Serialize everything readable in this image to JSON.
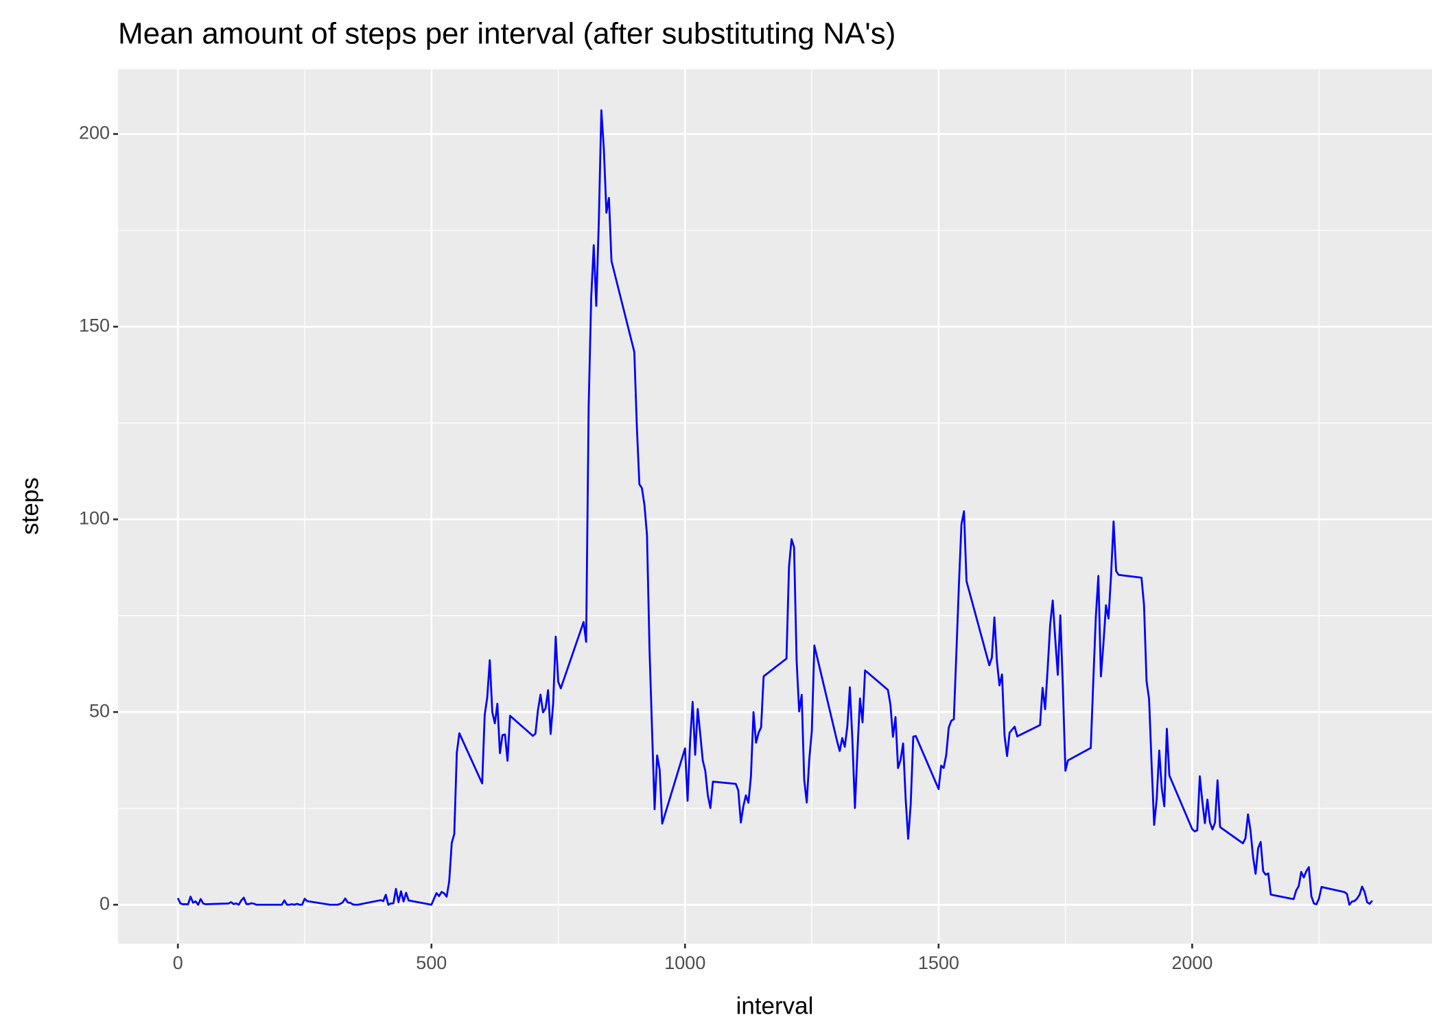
{
  "chart_data": {
    "type": "line",
    "title": "Mean amount of steps per interval (after substituting NA's)",
    "x_label": "interval",
    "y_label": "steps",
    "color": "#0000ff",
    "grid": true,
    "minor_grid": true,
    "x": [
      0,
      5,
      10,
      15,
      20,
      25,
      30,
      35,
      40,
      45,
      50,
      55,
      100,
      105,
      110,
      115,
      120,
      125,
      130,
      135,
      140,
      145,
      150,
      155,
      200,
      205,
      210,
      215,
      220,
      225,
      230,
      235,
      240,
      245,
      250,
      255,
      300,
      305,
      310,
      315,
      320,
      325,
      330,
      335,
      340,
      345,
      350,
      355,
      400,
      405,
      410,
      415,
      420,
      425,
      430,
      435,
      440,
      445,
      450,
      455,
      500,
      505,
      510,
      515,
      520,
      525,
      530,
      535,
      540,
      545,
      550,
      555,
      600,
      605,
      610,
      615,
      620,
      625,
      630,
      635,
      640,
      645,
      650,
      655,
      700,
      705,
      710,
      715,
      720,
      725,
      730,
      735,
      740,
      745,
      750,
      755,
      800,
      805,
      810,
      815,
      820,
      825,
      830,
      835,
      840,
      845,
      850,
      855,
      900,
      905,
      910,
      915,
      920,
      925,
      930,
      935,
      940,
      945,
      950,
      955,
      1000,
      1005,
      1010,
      1015,
      1020,
      1025,
      1030,
      1035,
      1040,
      1045,
      1050,
      1055,
      1100,
      1105,
      1110,
      1115,
      1120,
      1125,
      1130,
      1135,
      1140,
      1145,
      1150,
      1155,
      1200,
      1205,
      1210,
      1215,
      1220,
      1225,
      1230,
      1235,
      1240,
      1245,
      1250,
      1255,
      1300,
      1305,
      1310,
      1315,
      1320,
      1325,
      1330,
      1335,
      1340,
      1345,
      1350,
      1355,
      1400,
      1405,
      1410,
      1415,
      1420,
      1425,
      1430,
      1435,
      1440,
      1445,
      1450,
      1455,
      1500,
      1505,
      1510,
      1515,
      1520,
      1525,
      1530,
      1535,
      1540,
      1545,
      1550,
      1555,
      1600,
      1605,
      1610,
      1615,
      1620,
      1625,
      1630,
      1635,
      1640,
      1645,
      1650,
      1655,
      1700,
      1705,
      1710,
      1715,
      1720,
      1725,
      1730,
      1735,
      1740,
      1745,
      1750,
      1755,
      1800,
      1805,
      1810,
      1815,
      1820,
      1825,
      1830,
      1835,
      1840,
      1845,
      1850,
      1855,
      1900,
      1905,
      1910,
      1915,
      1920,
      1925,
      1930,
      1935,
      1940,
      1945,
      1950,
      1955,
      2000,
      2005,
      2010,
      2015,
      2020,
      2025,
      2030,
      2035,
      2040,
      2045,
      2050,
      2055,
      2100,
      2105,
      2110,
      2115,
      2120,
      2125,
      2130,
      2135,
      2140,
      2145,
      2150,
      2155,
      2200,
      2205,
      2210,
      2215,
      2220,
      2225,
      2230,
      2235,
      2240,
      2245,
      2250,
      2255,
      2300,
      2305,
      2310,
      2315,
      2320,
      2325,
      2330,
      2335,
      2340,
      2345,
      2350,
      2355
    ],
    "values": [
      1.72,
      0.34,
      0.13,
      0.15,
      0.08,
      2.09,
      0.53,
      0.87,
      0,
      1.47,
      0.3,
      0.13,
      0.32,
      0.68,
      0.15,
      0.34,
      0,
      1.11,
      1.83,
      0.17,
      0.17,
      0.38,
      0.26,
      0,
      0,
      0,
      1.13,
      0,
      0,
      0.13,
      0,
      0.23,
      0,
      0,
      1.55,
      0.94,
      0,
      0,
      0,
      0,
      0.21,
      0.62,
      1.62,
      0.58,
      0.49,
      0.08,
      0,
      0,
      1.19,
      0.94,
      2.57,
      0,
      0.34,
      0.36,
      4.11,
      0.66,
      3.49,
      0.83,
      3.11,
      1.11,
      0,
      1.57,
      3,
      2.25,
      3.32,
      2.96,
      2.09,
      6.06,
      16.02,
      18.34,
      39.45,
      44.49,
      31.49,
      49.26,
      53.77,
      63.45,
      49.96,
      47.08,
      52.15,
      39.34,
      44.02,
      44.17,
      37.36,
      49.04,
      43.81,
      44.38,
      50.51,
      54.51,
      49.92,
      50.98,
      55.68,
      44.32,
      52.26,
      69.55,
      57.85,
      56.15,
      73.38,
      68.21,
      129.43,
      157.53,
      171.15,
      155.4,
      177.3,
      206.17,
      195.92,
      179.57,
      183.4,
      167.02,
      143.45,
      124.04,
      109.11,
      108.11,
      103.72,
      95.96,
      66.21,
      45.23,
      24.79,
      38.75,
      34.98,
      21.06,
      40.57,
      26.98,
      42.42,
      52.66,
      38.92,
      50.79,
      44.28,
      37.42,
      34.7,
      28.34,
      25.09,
      31.94,
      31.36,
      29.68,
      21.32,
      25.55,
      28.38,
      26.47,
      33.43,
      49.98,
      42.04,
      44.6,
      46.04,
      59.26,
      63.87,
      87.7,
      94.85,
      92.77,
      63.4,
      50.17,
      54.47,
      32.42,
      26.53,
      37.74,
      45.06,
      67.28,
      42.34,
      39.89,
      43.26,
      40.98,
      46.25,
      56.43,
      42.75,
      25.13,
      39.96,
      53.55,
      47.32,
      60.81,
      55.75,
      51.96,
      43.58,
      48.7,
      35.47,
      37.55,
      41.85,
      27.51,
      17.11,
      26.08,
      43.62,
      43.77,
      30.02,
      36.08,
      35.49,
      38.85,
      45.96,
      47.75,
      48.13,
      65.32,
      82.91,
      98.66,
      102.11,
      83.96,
      62.13,
      64.13,
      74.55,
      63.17,
      56.91,
      59.77,
      43.87,
      38.57,
      44.66,
      45.45,
      46.21,
      43.68,
      46.62,
      56.3,
      50.72,
      61.23,
      72.72,
      78.94,
      68.94,
      59.66,
      75.09,
      56.51,
      34.77,
      37.45,
      40.68,
      58.02,
      74.7,
      85.32,
      59.26,
      67.77,
      77.7,
      74.25,
      85.34,
      99.45,
      86.58,
      85.6,
      84.87,
      77.83,
      58.04,
      53.36,
      36.32,
      20.72,
      27.4,
      40.02,
      30.21,
      25.55,
      45.66,
      33.53,
      19.62,
      19.02,
      19.34,
      33.34,
      26.81,
      21.17,
      27.3,
      21.34,
      19.55,
      21.32,
      32.3,
      20.15,
      15.94,
      17.23,
      23.45,
      19.25,
      12.45,
      8.02,
      14.66,
      16.3,
      8.68,
      7.79,
      8.13,
      2.62,
      1.45,
      3.68,
      4.81,
      8.51,
      7.08,
      8.7,
      9.75,
      2.21,
      0.32,
      0.11,
      1.6,
      4.6,
      3.3,
      2.85,
      0,
      0.83,
      0.96,
      1.58,
      2.6,
      4.7,
      3.3,
      0.64,
      0.23,
      1.08
    ],
    "xlim": [
      -118,
      2473
    ],
    "xticks": [
      0,
      500,
      1000,
      1500,
      2000
    ],
    "ylim": [
      -10.1,
      216.8
    ],
    "yticks": [
      0,
      50,
      100,
      150,
      200
    ]
  }
}
